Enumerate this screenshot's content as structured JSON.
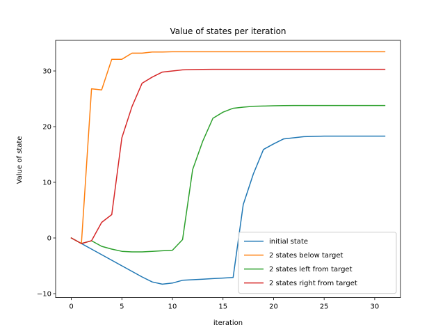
{
  "chart_data": {
    "type": "line",
    "title": "Value of states per iteration",
    "xlabel": "iteration",
    "ylabel": "Value of state",
    "xlim": [
      -1.55,
      32.55
    ],
    "ylim": [
      -10.7,
      35.5
    ],
    "xticks": [
      0,
      5,
      10,
      15,
      20,
      25,
      30
    ],
    "yticks": [
      -10,
      0,
      10,
      20,
      30
    ],
    "grid": false,
    "legend_position": "lower right",
    "x": [
      0,
      1,
      2,
      3,
      4,
      5,
      6,
      7,
      8,
      9,
      10,
      11,
      12,
      13,
      14,
      15,
      16,
      17,
      18,
      19,
      20,
      21,
      22,
      23,
      24,
      25,
      26,
      27,
      28,
      29,
      30,
      31
    ],
    "series": [
      {
        "name": "initial state",
        "color": "#1f77b4",
        "values": [
          0,
          -1.0,
          -2.0,
          -3.0,
          -4.0,
          -5.0,
          -6.0,
          -7.0,
          -7.9,
          -8.3,
          -8.1,
          -7.6,
          -7.5,
          -7.4,
          -7.3,
          -7.2,
          -7.1,
          6.0,
          11.5,
          15.9,
          16.9,
          17.8,
          18.0,
          18.2,
          18.25,
          18.3,
          18.3,
          18.3,
          18.3,
          18.3,
          18.3,
          18.3
        ]
      },
      {
        "name": "2 states below target",
        "color": "#ff7f0e",
        "values": [
          0,
          -1.0,
          26.8,
          26.6,
          32.1,
          32.1,
          33.2,
          33.2,
          33.4,
          33.4,
          33.45,
          33.45,
          33.45,
          33.45,
          33.45,
          33.45,
          33.45,
          33.45,
          33.45,
          33.45,
          33.45,
          33.45,
          33.45,
          33.45,
          33.45,
          33.45,
          33.45,
          33.45,
          33.45,
          33.45,
          33.45,
          33.45
        ]
      },
      {
        "name": "2 states left from target",
        "color": "#2ca02c",
        "values": [
          0,
          -1.0,
          -0.5,
          -1.5,
          -2.0,
          -2.4,
          -2.5,
          -2.5,
          -2.4,
          -2.3,
          -2.2,
          -0.3,
          12.3,
          17.4,
          21.5,
          22.6,
          23.3,
          23.5,
          23.65,
          23.7,
          23.75,
          23.78,
          23.8,
          23.8,
          23.8,
          23.8,
          23.8,
          23.8,
          23.8,
          23.8,
          23.8,
          23.8
        ]
      },
      {
        "name": "2 states right from target",
        "color": "#d62728",
        "values": [
          0,
          -1.0,
          -0.5,
          2.8,
          4.2,
          18.0,
          23.6,
          27.8,
          28.9,
          29.8,
          30.0,
          30.2,
          30.25,
          30.28,
          30.3,
          30.3,
          30.3,
          30.3,
          30.3,
          30.3,
          30.3,
          30.3,
          30.3,
          30.3,
          30.3,
          30.3,
          30.3,
          30.3,
          30.3,
          30.3,
          30.3,
          30.3
        ]
      }
    ]
  }
}
